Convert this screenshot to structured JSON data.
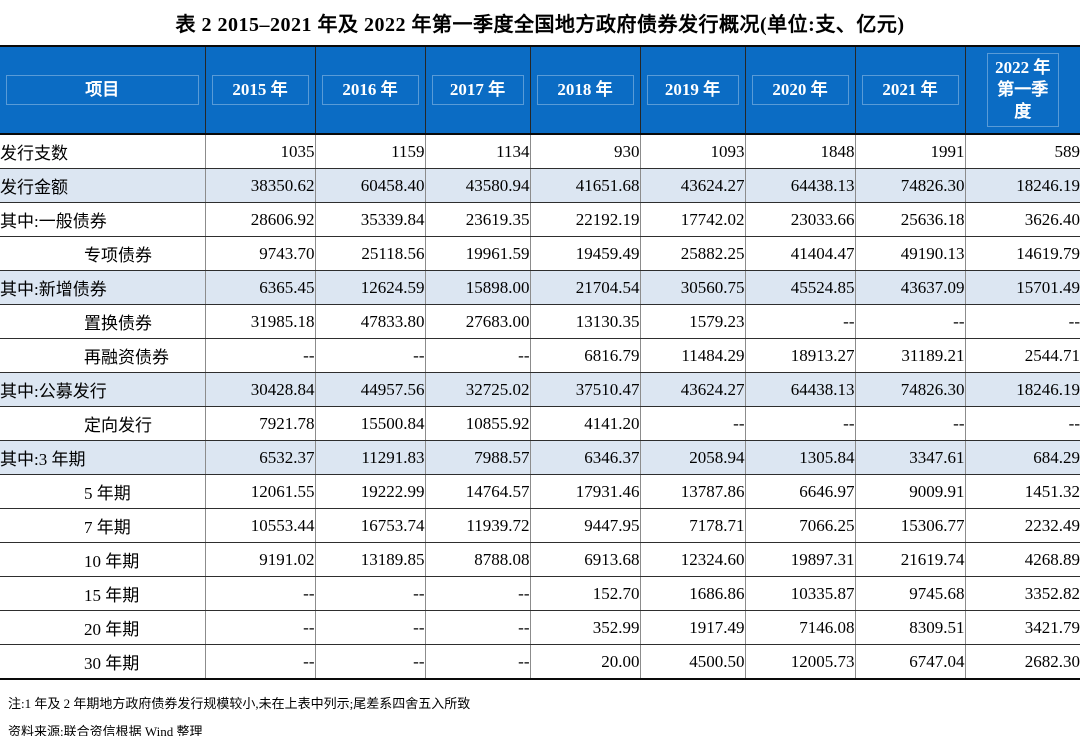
{
  "page": {
    "title": "表 2  2015–2021 年及 2022 年第一季度全国地方政府债券发行概况(单位:支、亿元)"
  },
  "colors": {
    "header_bg": "#0b6cc4",
    "header_text": "#ffffff",
    "highlight_row_bg": "#dce6f2"
  },
  "table": {
    "columns": [
      "项目",
      "2015 年",
      "2016 年",
      "2017 年",
      "2018 年",
      "2019 年",
      "2020 年",
      "2021 年",
      "2022 年第一季度"
    ],
    "rows": [
      {
        "label": "发行支数",
        "indent": false,
        "highlight": false,
        "values": [
          "1035",
          "1159",
          "1134",
          "930",
          "1093",
          "1848",
          "1991",
          "589"
        ]
      },
      {
        "label": "发行金额",
        "indent": false,
        "highlight": true,
        "values": [
          "38350.62",
          "60458.40",
          "43580.94",
          "41651.68",
          "43624.27",
          "64438.13",
          "74826.30",
          "18246.19"
        ]
      },
      {
        "label": "其中:一般债券",
        "indent": false,
        "highlight": false,
        "values": [
          "28606.92",
          "35339.84",
          "23619.35",
          "22192.19",
          "17742.02",
          "23033.66",
          "25636.18",
          "3626.40"
        ]
      },
      {
        "label": "专项债券",
        "indent": true,
        "highlight": false,
        "values": [
          "9743.70",
          "25118.56",
          "19961.59",
          "19459.49",
          "25882.25",
          "41404.47",
          "49190.13",
          "14619.79"
        ]
      },
      {
        "label": "其中:新增债券",
        "indent": false,
        "highlight": true,
        "values": [
          "6365.45",
          "12624.59",
          "15898.00",
          "21704.54",
          "30560.75",
          "45524.85",
          "43637.09",
          "15701.49"
        ]
      },
      {
        "label": "置换债券",
        "indent": true,
        "highlight": false,
        "values": [
          "31985.18",
          "47833.80",
          "27683.00",
          "13130.35",
          "1579.23",
          "--",
          "--",
          "--"
        ]
      },
      {
        "label": "再融资债券",
        "indent": true,
        "highlight": false,
        "values": [
          "--",
          "--",
          "--",
          "6816.79",
          "11484.29",
          "18913.27",
          "31189.21",
          "2544.71"
        ]
      },
      {
        "label": "其中:公募发行",
        "indent": false,
        "highlight": true,
        "values": [
          "30428.84",
          "44957.56",
          "32725.02",
          "37510.47",
          "43624.27",
          "64438.13",
          "74826.30",
          "18246.19"
        ]
      },
      {
        "label": "定向发行",
        "indent": true,
        "highlight": false,
        "values": [
          "7921.78",
          "15500.84",
          "10855.92",
          "4141.20",
          "--",
          "--",
          "--",
          "--"
        ]
      },
      {
        "label": "其中:3 年期",
        "indent": false,
        "highlight": true,
        "values": [
          "6532.37",
          "11291.83",
          "7988.57",
          "6346.37",
          "2058.94",
          "1305.84",
          "3347.61",
          "684.29"
        ]
      },
      {
        "label": "5 年期",
        "indent": true,
        "highlight": false,
        "values": [
          "12061.55",
          "19222.99",
          "14764.57",
          "17931.46",
          "13787.86",
          "6646.97",
          "9009.91",
          "1451.32"
        ]
      },
      {
        "label": "7 年期",
        "indent": true,
        "highlight": false,
        "values": [
          "10553.44",
          "16753.74",
          "11939.72",
          "9447.95",
          "7178.71",
          "7066.25",
          "15306.77",
          "2232.49"
        ]
      },
      {
        "label": "10 年期",
        "indent": true,
        "highlight": false,
        "values": [
          "9191.02",
          "13189.85",
          "8788.08",
          "6913.68",
          "12324.60",
          "19897.31",
          "21619.74",
          "4268.89"
        ]
      },
      {
        "label": "15 年期",
        "indent": true,
        "highlight": false,
        "values": [
          "--",
          "--",
          "--",
          "152.70",
          "1686.86",
          "10335.87",
          "9745.68",
          "3352.82"
        ]
      },
      {
        "label": "20 年期",
        "indent": true,
        "highlight": false,
        "values": [
          "--",
          "--",
          "--",
          "352.99",
          "1917.49",
          "7146.08",
          "8309.51",
          "3421.79"
        ]
      },
      {
        "label": "30 年期",
        "indent": true,
        "highlight": false,
        "values": [
          "--",
          "--",
          "--",
          "20.00",
          "4500.50",
          "12005.73",
          "6747.04",
          "2682.30"
        ]
      }
    ]
  },
  "notes": {
    "note": "注:1 年及 2 年期地方政府债券发行规模较小,未在上表中列示;尾差系四舍五入所致",
    "source": "资料来源:联合资信根据 Wind 整理"
  }
}
